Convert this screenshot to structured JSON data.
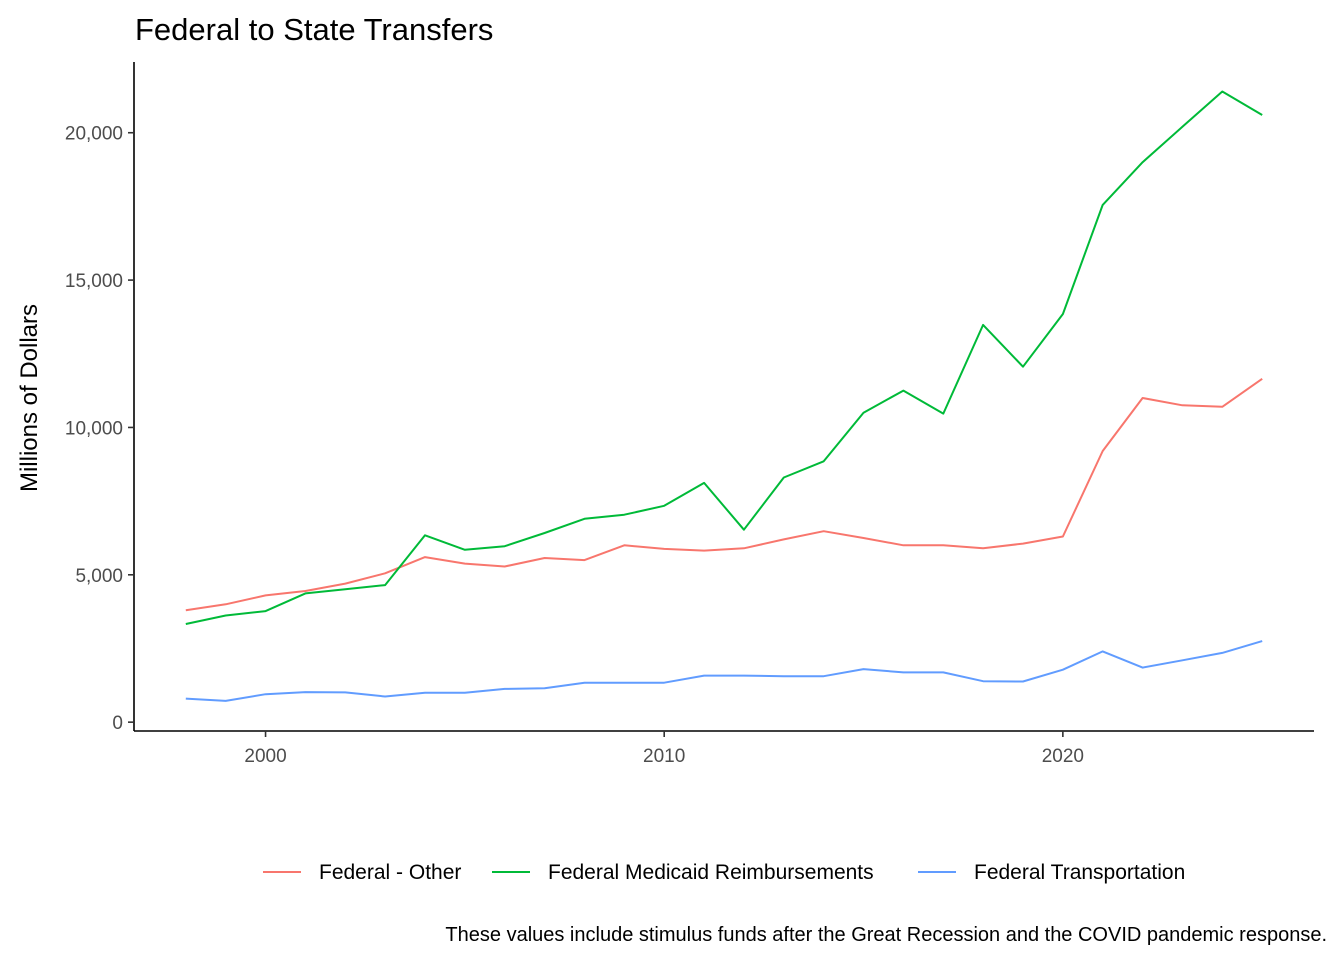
{
  "chart_data": {
    "type": "line",
    "title": "Federal to State Transfers",
    "xlabel": "",
    "ylabel": "Millions of Dollars",
    "caption": "These values include stimulus funds after the Great Recession and the COVID pandemic response.",
    "xlim": [
      1996.7,
      2026.3
    ],
    "ylim": [
      -300,
      22400
    ],
    "x_ticks": [
      2000,
      2010,
      2020
    ],
    "x_tick_labels": [
      "2000",
      "2010",
      "2020"
    ],
    "y_ticks": [
      0,
      5000,
      10000,
      15000,
      20000
    ],
    "y_tick_labels": [
      "0",
      "5,000",
      "10,000",
      "15,000",
      "20,000"
    ],
    "grid": false,
    "legend_position": "bottom",
    "x": [
      1998,
      1999,
      2000,
      2001,
      2002,
      2003,
      2004,
      2005,
      2006,
      2007,
      2008,
      2009,
      2010,
      2011,
      2012,
      2013,
      2014,
      2015,
      2016,
      2017,
      2018,
      2019,
      2020,
      2021,
      2022,
      2023,
      2024,
      2025
    ],
    "series": [
      {
        "name": "Federal - Other",
        "color": "#F8766D",
        "values": [
          3800,
          4000,
          4300,
          4450,
          4700,
          5050,
          5600,
          5380,
          5280,
          5570,
          5500,
          6000,
          5880,
          5820,
          5900,
          6200,
          6480,
          6250,
          6000,
          6000,
          5900,
          6060,
          6300,
          9200,
          11000,
          10750,
          10700,
          11650
        ]
      },
      {
        "name": "Federal Medicaid Reimbursements",
        "color": "#00BA38",
        "values": [
          3330,
          3620,
          3770,
          4370,
          4510,
          4650,
          6340,
          5850,
          5970,
          6420,
          6900,
          7040,
          7340,
          8120,
          6530,
          8300,
          8850,
          10500,
          11250,
          10470,
          13480,
          12060,
          13850,
          17550,
          19000,
          20200,
          21400,
          20600
        ]
      },
      {
        "name": "Federal Transportation",
        "color": "#619CFF",
        "values": [
          800,
          720,
          950,
          1020,
          1010,
          870,
          1000,
          1000,
          1130,
          1150,
          1340,
          1340,
          1340,
          1580,
          1580,
          1560,
          1560,
          1800,
          1690,
          1690,
          1390,
          1380,
          1780,
          2400,
          1850,
          2100,
          2350,
          2750
        ]
      }
    ]
  }
}
